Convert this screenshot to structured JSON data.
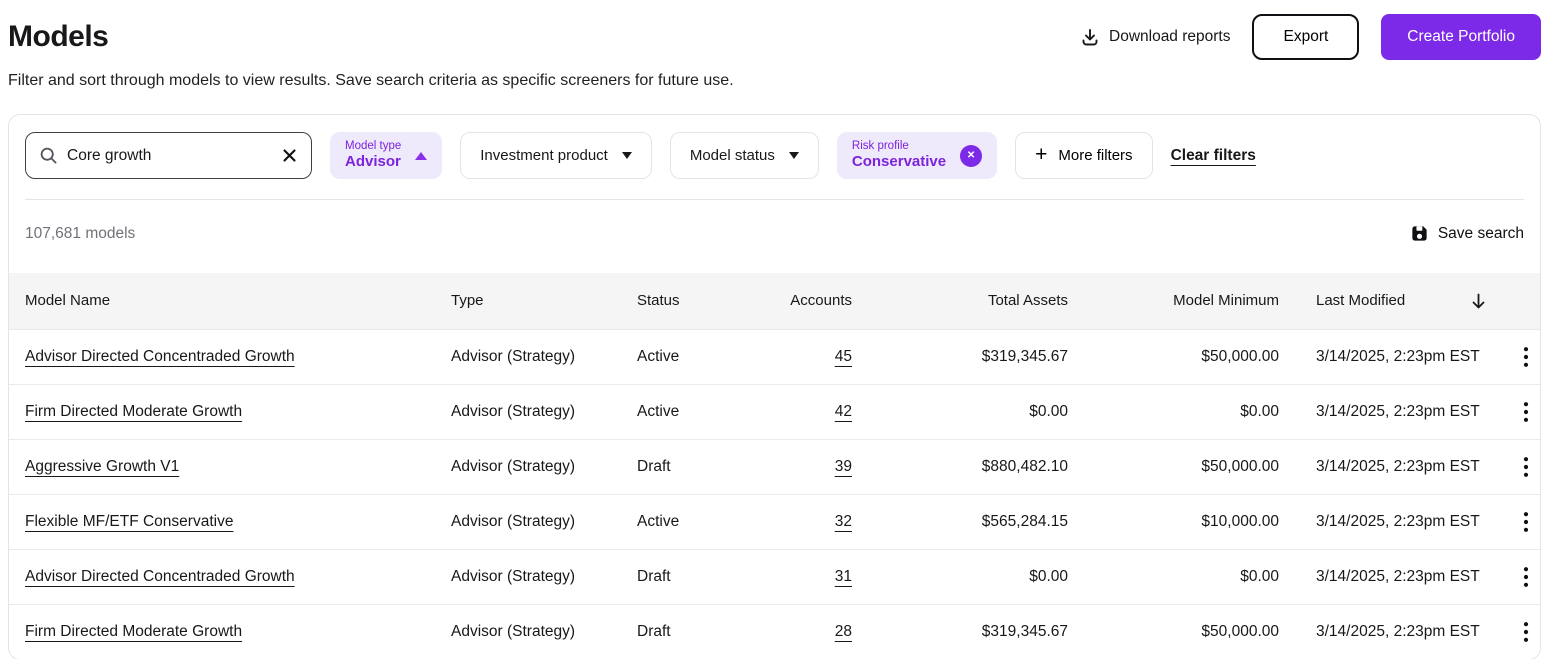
{
  "header": {
    "title": "Models",
    "subtitle": "Filter and sort through models to view results. Save search criteria as specific screeners for future use.",
    "download_reports_label": "Download reports",
    "export_label": "Export",
    "create_portfolio_label": "Create Portfolio"
  },
  "filters": {
    "search": {
      "value": "Core growth"
    },
    "model_type": {
      "label": "Model type",
      "value": "Advisor"
    },
    "investment_product_label": "Investment product",
    "model_status_label": "Model status",
    "risk_profile": {
      "label": "Risk profile",
      "value": "Conservative"
    },
    "more_filters_label": "More filters",
    "clear_filters_label": "Clear filters"
  },
  "results": {
    "count_label": "107,681 models",
    "save_search_label": "Save search"
  },
  "table": {
    "columns": [
      "Model Name",
      "Type",
      "Status",
      "Accounts",
      "Total Assets",
      "Model Minimum",
      "Last Modified"
    ],
    "sort_direction": "descending",
    "rows": [
      {
        "name": "Advisor Directed Concentraded Growth",
        "type": "Advisor (Strategy)",
        "status": "Active",
        "accounts": "45",
        "total_assets": "$319,345.67",
        "model_minimum": "$50,000.00",
        "last_modified": "3/14/2025, 2:23pm EST"
      },
      {
        "name": "Firm Directed Moderate Growth",
        "type": "Advisor (Strategy)",
        "status": "Active",
        "accounts": "42",
        "total_assets": "$0.00",
        "model_minimum": "$0.00",
        "last_modified": "3/14/2025, 2:23pm EST"
      },
      {
        "name": "Aggressive Growth V1",
        "type": "Advisor (Strategy)",
        "status": "Draft",
        "accounts": "39",
        "total_assets": "$880,482.10",
        "model_minimum": "$50,000.00",
        "last_modified": "3/14/2025, 2:23pm EST"
      },
      {
        "name": "Flexible MF/ETF Conservative",
        "type": "Advisor (Strategy)",
        "status": "Active",
        "accounts": "32",
        "total_assets": "$565,284.15",
        "model_minimum": "$10,000.00",
        "last_modified": "3/14/2025, 2:23pm EST"
      },
      {
        "name": "Advisor Directed Concentraded Growth",
        "type": "Advisor (Strategy)",
        "status": "Draft",
        "accounts": "31",
        "total_assets": "$0.00",
        "model_minimum": "$0.00",
        "last_modified": "3/14/2025, 2:23pm EST"
      },
      {
        "name": "Firm Directed Moderate Growth",
        "type": "Advisor (Strategy)",
        "status": "Draft",
        "accounts": "28",
        "total_assets": "$319,345.67",
        "model_minimum": "$50,000.00",
        "last_modified": "3/14/2025, 2:23pm EST"
      }
    ]
  },
  "colors": {
    "accent_purple": "#7C2AE8",
    "chip_background": "#EFE9FC",
    "chip_text": "#7C24DC",
    "table_header_background": "#F5F5F6",
    "border": "#E4E4E7",
    "muted_text": "#71717A"
  }
}
